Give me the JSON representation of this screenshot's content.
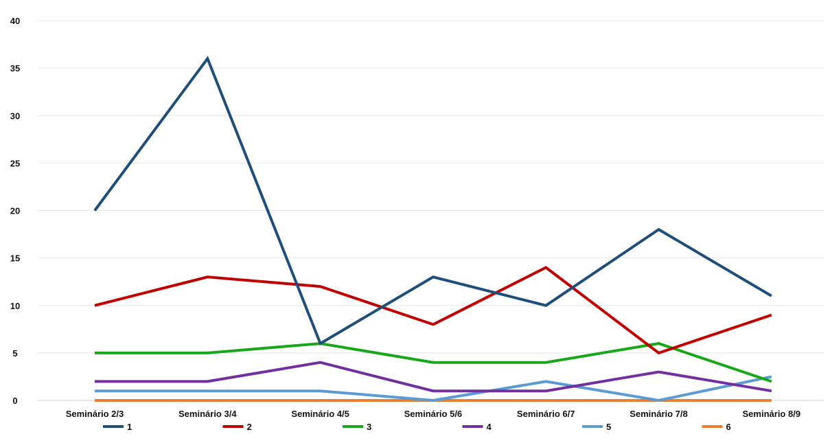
{
  "chart_data": {
    "type": "line",
    "title": "",
    "xlabel": "",
    "ylabel": "",
    "categories": [
      "Seminário 2/3",
      "Seminário 3/4",
      "Seminário 4/5",
      "Seminário 5/6",
      "Seminário 6/7",
      "Seminário 7/8",
      "Seminário 8/9"
    ],
    "ylim": [
      0,
      40
    ],
    "yticks": [
      0,
      5,
      10,
      15,
      20,
      25,
      30,
      35,
      40
    ],
    "grid": "horizontal",
    "legend_position": "bottom",
    "series": [
      {
        "name": "1",
        "color": "#1f4e79",
        "values": [
          20,
          36,
          6,
          13,
          10,
          18,
          11
        ]
      },
      {
        "name": "2",
        "color": "#c00000",
        "values": [
          10,
          13,
          12,
          8,
          14,
          5,
          9
        ]
      },
      {
        "name": "3",
        "color": "#1aa61a",
        "values": [
          5,
          5,
          6,
          4,
          4,
          6,
          2
        ]
      },
      {
        "name": "4",
        "color": "#7030a0",
        "values": [
          2,
          2,
          4,
          1,
          1,
          3,
          1
        ]
      },
      {
        "name": "5",
        "color": "#5b9bd5",
        "values": [
          1,
          1,
          1,
          0,
          2,
          0,
          2.5
        ]
      },
      {
        "name": "6",
        "color": "#ed7d31",
        "values": [
          0,
          0,
          0,
          0,
          0,
          0,
          0
        ]
      }
    ]
  }
}
